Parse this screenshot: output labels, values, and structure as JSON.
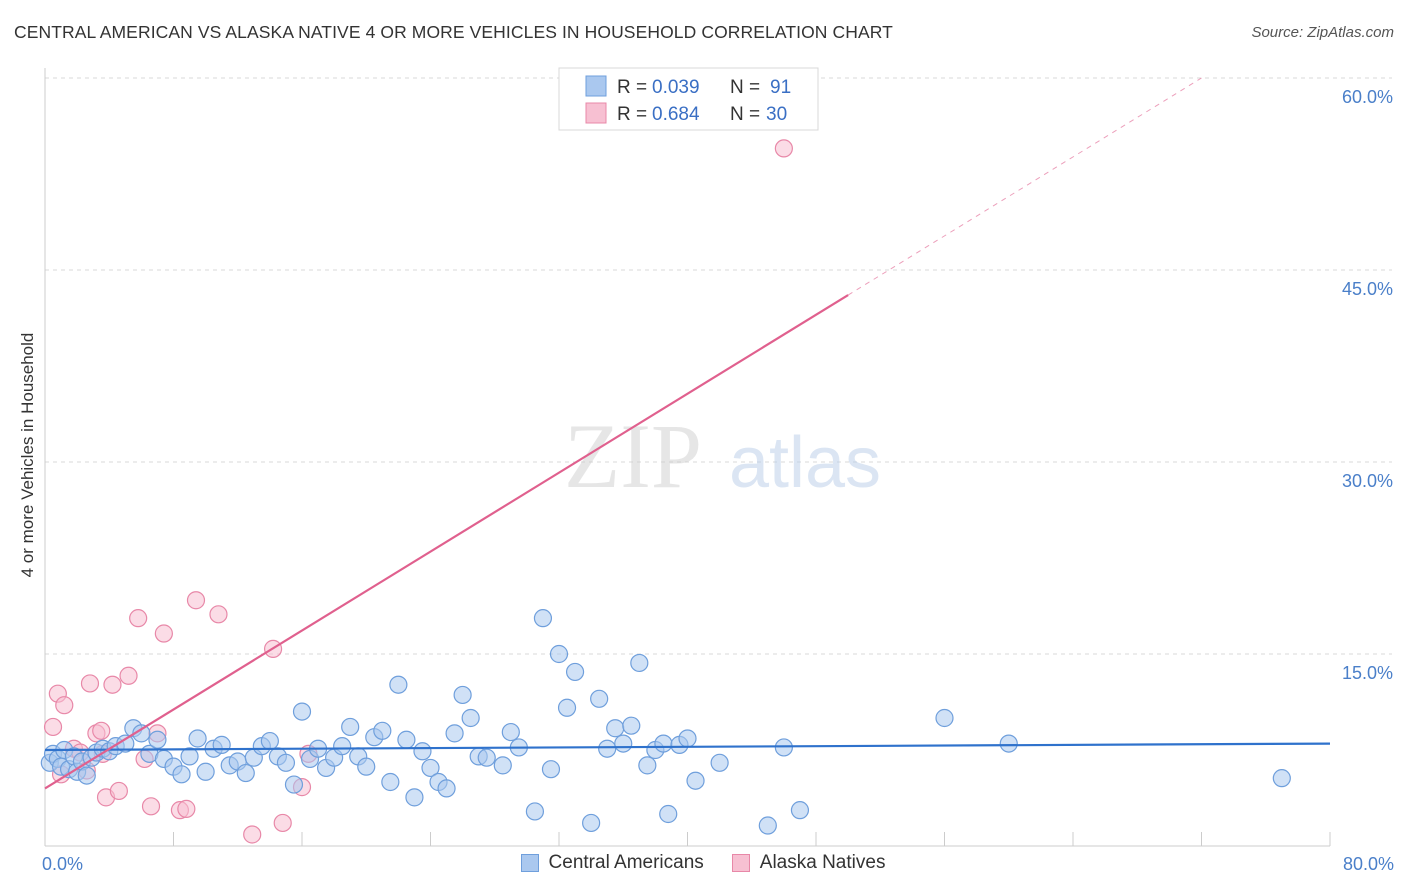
{
  "header": {
    "title": "CENTRAL AMERICAN VS ALASKA NATIVE 4 OR MORE VEHICLES IN HOUSEHOLD CORRELATION CHART",
    "source": "Source: ZipAtlas.com"
  },
  "watermark": {
    "zip": "ZIP",
    "atlas": "atlas"
  },
  "colors": {
    "blue_fill": "#aac8ef",
    "blue_stroke": "#6f9fdc",
    "blue_line": "#2f72cc",
    "pink_fill": "#f7c0d2",
    "pink_stroke": "#e888a8",
    "pink_line": "#e0608e",
    "grid": "#d8d8d8",
    "axis_label": "#4a7fc9"
  },
  "chart_data": {
    "type": "scatter",
    "ylabel": "4 or more Vehicles in Household",
    "xlim": [
      0,
      80
    ],
    "ylim": [
      0,
      60
    ],
    "x_tick_labels": [
      "0.0%",
      "80.0%"
    ],
    "y_ticks": [
      15,
      30,
      45,
      60
    ],
    "y_tick_labels": [
      "15.0%",
      "30.0%",
      "45.0%",
      "60.0%"
    ],
    "grid": true,
    "legend_position": "top-center",
    "legend": [
      {
        "r_label": "R = ",
        "r_value": "0.039",
        "n_label": "N = ",
        "n_value": "91"
      },
      {
        "r_label": "R = ",
        "r_value": "0.684",
        "n_label": "N = ",
        "n_value": "30"
      }
    ],
    "series": [
      {
        "name": "Central Americans",
        "color": "#aac8ef",
        "trend": {
          "x": [
            0,
            80
          ],
          "y": [
            7.5,
            8.0
          ],
          "solid_to": 80
        },
        "points": [
          [
            0.3,
            6.5
          ],
          [
            0.5,
            7.2
          ],
          [
            0.8,
            6.8
          ],
          [
            1.0,
            6.2
          ],
          [
            1.2,
            7.5
          ],
          [
            1.5,
            6.0
          ],
          [
            1.8,
            7.0
          ],
          [
            2.0,
            5.8
          ],
          [
            2.3,
            6.6
          ],
          [
            2.6,
            5.5
          ],
          [
            2.9,
            6.9
          ],
          [
            3.2,
            7.3
          ],
          [
            3.6,
            7.6
          ],
          [
            4.0,
            7.4
          ],
          [
            4.4,
            7.8
          ],
          [
            5.0,
            8.0
          ],
          [
            5.5,
            9.2
          ],
          [
            6.0,
            8.8
          ],
          [
            6.5,
            7.2
          ],
          [
            7.0,
            8.3
          ],
          [
            7.4,
            6.8
          ],
          [
            8.0,
            6.2
          ],
          [
            8.5,
            5.6
          ],
          [
            9.0,
            7.0
          ],
          [
            9.5,
            8.4
          ],
          [
            10.0,
            5.8
          ],
          [
            10.5,
            7.6
          ],
          [
            11.0,
            7.9
          ],
          [
            11.5,
            6.3
          ],
          [
            12.0,
            6.6
          ],
          [
            12.5,
            5.7
          ],
          [
            13.0,
            6.9
          ],
          [
            13.5,
            7.8
          ],
          [
            14.0,
            8.2
          ],
          [
            14.5,
            7.0
          ],
          [
            15.0,
            6.5
          ],
          [
            15.5,
            4.8
          ],
          [
            16.0,
            10.5
          ],
          [
            16.5,
            6.8
          ],
          [
            17.0,
            7.6
          ],
          [
            17.5,
            6.1
          ],
          [
            18.0,
            6.9
          ],
          [
            18.5,
            7.8
          ],
          [
            19.0,
            9.3
          ],
          [
            19.5,
            7.0
          ],
          [
            20.0,
            6.2
          ],
          [
            20.5,
            8.5
          ],
          [
            21.0,
            9.0
          ],
          [
            21.5,
            5.0
          ],
          [
            22.0,
            12.6
          ],
          [
            22.5,
            8.3
          ],
          [
            23.0,
            3.8
          ],
          [
            23.5,
            7.4
          ],
          [
            24.0,
            6.1
          ],
          [
            24.5,
            5.0
          ],
          [
            25.0,
            4.5
          ],
          [
            25.5,
            8.8
          ],
          [
            26.0,
            11.8
          ],
          [
            26.5,
            10.0
          ],
          [
            27.0,
            7.0
          ],
          [
            27.5,
            6.9
          ],
          [
            28.5,
            6.3
          ],
          [
            29.0,
            8.9
          ],
          [
            29.5,
            7.7
          ],
          [
            30.5,
            2.7
          ],
          [
            31.0,
            17.8
          ],
          [
            31.5,
            6.0
          ],
          [
            32.0,
            15.0
          ],
          [
            32.5,
            10.8
          ],
          [
            33.0,
            13.6
          ],
          [
            34.0,
            1.8
          ],
          [
            34.5,
            11.5
          ],
          [
            35.0,
            7.6
          ],
          [
            35.5,
            9.2
          ],
          [
            36.0,
            8.0
          ],
          [
            36.5,
            9.4
          ],
          [
            37.0,
            14.3
          ],
          [
            37.5,
            6.3
          ],
          [
            38.0,
            7.5
          ],
          [
            38.5,
            8.0
          ],
          [
            38.8,
            2.5
          ],
          [
            39.5,
            7.9
          ],
          [
            40.0,
            8.4
          ],
          [
            40.5,
            5.1
          ],
          [
            42.0,
            6.5
          ],
          [
            45.0,
            1.6
          ],
          [
            46.0,
            7.7
          ],
          [
            47.0,
            2.8
          ],
          [
            56.0,
            10.0
          ],
          [
            60.0,
            8.0
          ],
          [
            77.0,
            5.3
          ]
        ]
      },
      {
        "name": "Alaska Natives",
        "color": "#f7c0d2",
        "trend": {
          "x": [
            0,
            72
          ],
          "y": [
            4.5,
            60
          ],
          "solid_to": 50
        },
        "points": [
          [
            0.5,
            9.3
          ],
          [
            0.8,
            11.9
          ],
          [
            1.2,
            11.0
          ],
          [
            1.8,
            7.6
          ],
          [
            2.2,
            7.3
          ],
          [
            2.6,
            5.9
          ],
          [
            2.8,
            12.7
          ],
          [
            3.2,
            8.8
          ],
          [
            3.5,
            9.0
          ],
          [
            3.6,
            7.2
          ],
          [
            3.8,
            3.8
          ],
          [
            4.2,
            12.6
          ],
          [
            4.6,
            4.3
          ],
          [
            5.2,
            13.3
          ],
          [
            5.8,
            17.8
          ],
          [
            6.2,
            6.8
          ],
          [
            6.6,
            3.1
          ],
          [
            7.0,
            8.8
          ],
          [
            7.4,
            16.6
          ],
          [
            8.4,
            2.8
          ],
          [
            8.8,
            2.9
          ],
          [
            9.4,
            19.2
          ],
          [
            10.8,
            18.1
          ],
          [
            12.9,
            0.9
          ],
          [
            14.2,
            15.4
          ],
          [
            14.8,
            1.8
          ],
          [
            16.0,
            4.6
          ],
          [
            16.4,
            7.2
          ],
          [
            46.0,
            54.5
          ],
          [
            1.0,
            5.6
          ]
        ]
      }
    ]
  }
}
